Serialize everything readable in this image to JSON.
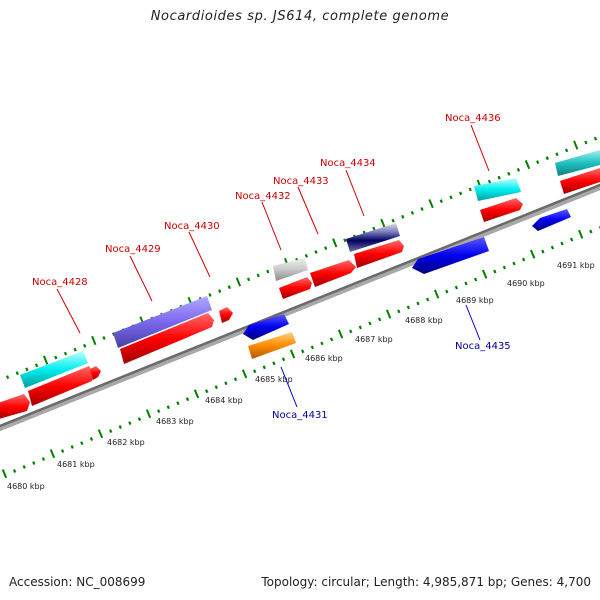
{
  "header": {
    "title": "Nocardioides sp. JS614, complete genome"
  },
  "footer": {
    "accession": "Accession: NC_008699",
    "summary": "Topology: circular; Length: 4,985,871 bp; Genes: 4,700"
  },
  "map": {
    "kbp_labels": [
      "4680 kbp",
      "4681 kbp",
      "4682 kbp",
      "4683 kbp",
      "4684 kbp",
      "4685 kbp",
      "4686 kbp",
      "4687 kbp",
      "4688 kbp",
      "4689 kbp",
      "4690 kbp",
      "4691 kbp"
    ],
    "colors": {
      "backbone": "#808080",
      "forward_cds": "#ff0000",
      "reverse_cds": "#0000ff",
      "rna_cyan": "#00e5ee",
      "purple_cds": "#7b68ee",
      "orange_cds": "#ff8c00",
      "tick": "#008000",
      "forward_label": "#cc0000",
      "reverse_label": "#000099"
    },
    "gene_labels": [
      {
        "name": "Noca_4428",
        "strand": "forward"
      },
      {
        "name": "Noca_4429",
        "strand": "forward"
      },
      {
        "name": "Noca_4430",
        "strand": "forward"
      },
      {
        "name": "Noca_4432",
        "strand": "forward"
      },
      {
        "name": "Noca_4433",
        "strand": "forward"
      },
      {
        "name": "Noca_4434",
        "strand": "forward"
      },
      {
        "name": "Noca_4436",
        "strand": "forward"
      },
      {
        "name": "Noca_4431",
        "strand": "reverse"
      },
      {
        "name": "Noca_4435",
        "strand": "reverse"
      }
    ]
  }
}
